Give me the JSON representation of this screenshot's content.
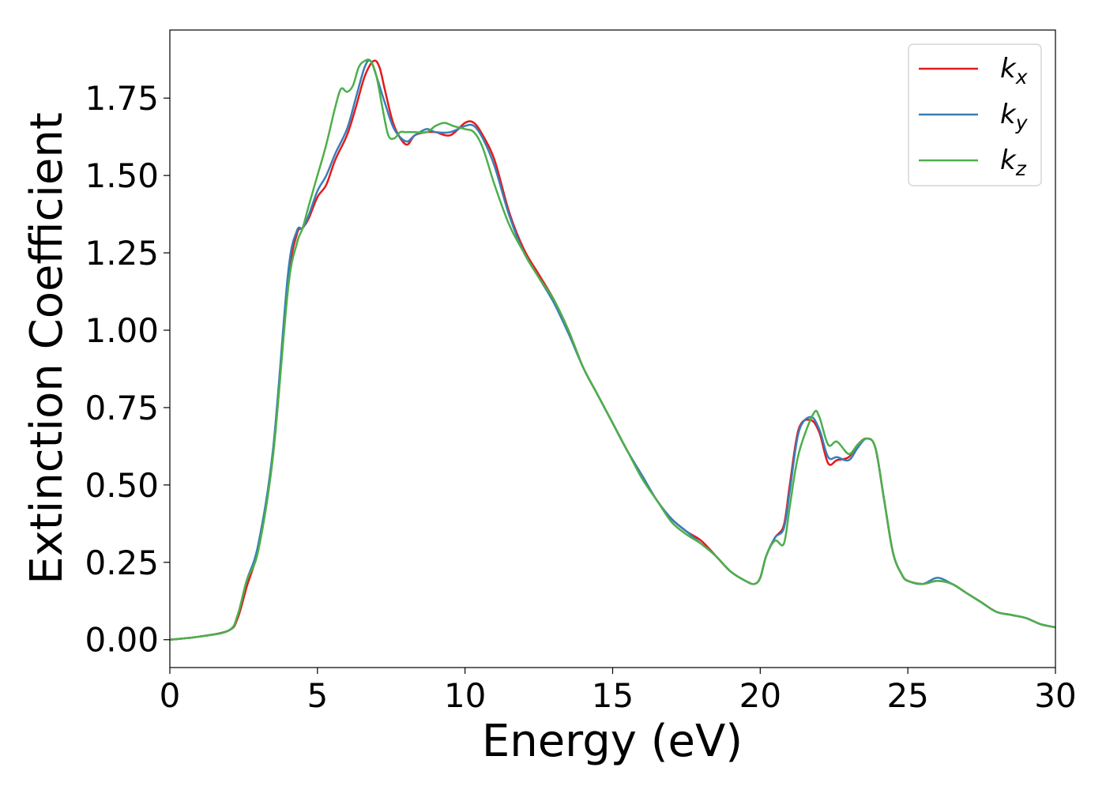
{
  "chart_data": {
    "type": "line",
    "xlabel": "Energy (eV)",
    "ylabel": "Extinction Coefficient",
    "xlim": [
      0,
      30
    ],
    "ylim": [
      -0.09,
      1.97
    ],
    "xticks": [
      0,
      5,
      10,
      15,
      20,
      25,
      30
    ],
    "xtick_labels": [
      "0",
      "5",
      "10",
      "15",
      "20",
      "25",
      "30"
    ],
    "yticks": [
      0.0,
      0.25,
      0.5,
      0.75,
      1.0,
      1.25,
      1.5,
      1.75
    ],
    "ytick_labels": [
      "0.00",
      "0.25",
      "0.50",
      "0.75",
      "1.00",
      "1.25",
      "1.50",
      "1.75"
    ],
    "grid": false,
    "legend_position": "top-right",
    "series": [
      {
        "name": "k_x",
        "label_base": "k",
        "label_sub": "x",
        "color": "#e41a1c",
        "x": [
          0,
          1,
          2,
          2.3,
          2.6,
          3,
          3.5,
          4,
          4.3,
          4.5,
          4.7,
          5,
          5.3,
          5.6,
          6,
          6.3,
          6.6,
          6.9,
          7.1,
          7.3,
          7.6,
          8,
          8.3,
          8.7,
          9,
          9.5,
          10,
          10.3,
          10.6,
          11,
          11.5,
          12,
          12.5,
          13,
          13.5,
          14,
          14.5,
          15,
          15.5,
          16,
          16.5,
          17,
          17.5,
          18,
          18.5,
          19,
          19.5,
          19.8,
          20,
          20.2,
          20.5,
          20.8,
          21,
          21.3,
          21.7,
          22,
          22.3,
          22.6,
          23,
          23.3,
          23.6,
          23.9,
          24.2,
          24.5,
          24.8,
          25,
          25.5,
          26,
          26.5,
          27,
          27.5,
          28,
          28.5,
          29,
          29.5,
          30
        ],
        "y": [
          0.0,
          0.01,
          0.03,
          0.07,
          0.17,
          0.3,
          0.6,
          1.15,
          1.31,
          1.33,
          1.36,
          1.43,
          1.47,
          1.55,
          1.63,
          1.72,
          1.82,
          1.87,
          1.85,
          1.77,
          1.66,
          1.6,
          1.63,
          1.64,
          1.64,
          1.63,
          1.67,
          1.67,
          1.63,
          1.55,
          1.38,
          1.26,
          1.18,
          1.1,
          1.0,
          0.88,
          0.79,
          0.7,
          0.61,
          0.53,
          0.45,
          0.39,
          0.35,
          0.32,
          0.27,
          0.22,
          0.19,
          0.18,
          0.2,
          0.27,
          0.33,
          0.37,
          0.5,
          0.68,
          0.71,
          0.67,
          0.57,
          0.58,
          0.59,
          0.63,
          0.65,
          0.62,
          0.45,
          0.28,
          0.21,
          0.19,
          0.18,
          0.19,
          0.18,
          0.15,
          0.12,
          0.09,
          0.08,
          0.07,
          0.05,
          0.04
        ]
      },
      {
        "name": "k_y",
        "label_base": "k",
        "label_sub": "y",
        "color": "#377eb8",
        "x": [
          0,
          1,
          2,
          2.3,
          2.6,
          3,
          3.5,
          4,
          4.3,
          4.5,
          4.7,
          5,
          5.3,
          5.6,
          6,
          6.3,
          6.6,
          6.8,
          7,
          7.3,
          7.6,
          8,
          8.3,
          8.7,
          9,
          9.5,
          10,
          10.3,
          10.6,
          11,
          11.5,
          12,
          12.5,
          13,
          13.5,
          14,
          14.5,
          15,
          15.5,
          16,
          16.5,
          17,
          17.5,
          18,
          18.5,
          19,
          19.5,
          19.8,
          20,
          20.2,
          20.5,
          20.8,
          21,
          21.3,
          21.7,
          22,
          22.3,
          22.6,
          23,
          23.3,
          23.6,
          23.9,
          24.2,
          24.5,
          24.8,
          25,
          25.5,
          26,
          26.5,
          27,
          27.5,
          28,
          28.5,
          29,
          29.5,
          30
        ],
        "y": [
          0.0,
          0.01,
          0.03,
          0.08,
          0.19,
          0.31,
          0.62,
          1.18,
          1.32,
          1.33,
          1.37,
          1.45,
          1.5,
          1.57,
          1.65,
          1.75,
          1.85,
          1.87,
          1.82,
          1.73,
          1.65,
          1.61,
          1.63,
          1.65,
          1.64,
          1.64,
          1.66,
          1.66,
          1.62,
          1.53,
          1.37,
          1.25,
          1.17,
          1.09,
          0.99,
          0.88,
          0.79,
          0.7,
          0.61,
          0.53,
          0.45,
          0.39,
          0.35,
          0.31,
          0.27,
          0.22,
          0.19,
          0.18,
          0.2,
          0.27,
          0.33,
          0.36,
          0.48,
          0.67,
          0.72,
          0.68,
          0.59,
          0.59,
          0.58,
          0.62,
          0.65,
          0.62,
          0.45,
          0.28,
          0.21,
          0.19,
          0.18,
          0.2,
          0.18,
          0.15,
          0.12,
          0.09,
          0.08,
          0.07,
          0.05,
          0.04
        ]
      },
      {
        "name": "k_z",
        "label_base": "k",
        "label_sub": "z",
        "color": "#4daf4a",
        "x": [
          0,
          1,
          2,
          2.3,
          2.6,
          3,
          3.5,
          4,
          4.3,
          4.5,
          4.7,
          5,
          5.3,
          5.6,
          5.8,
          6,
          6.2,
          6.4,
          6.6,
          6.8,
          7,
          7.2,
          7.4,
          7.6,
          7.8,
          8,
          8.3,
          8.7,
          9,
          9.3,
          9.6,
          10,
          10.3,
          10.6,
          11,
          11.5,
          12,
          12.5,
          13,
          13.5,
          14,
          14.5,
          15,
          15.5,
          16,
          16.5,
          17,
          17.5,
          18,
          18.5,
          19,
          19.5,
          19.8,
          20,
          20.2,
          20.5,
          20.8,
          21,
          21.3,
          21.8,
          22,
          22.3,
          22.6,
          23,
          23.3,
          23.6,
          23.9,
          24.2,
          24.5,
          24.8,
          25,
          25.5,
          26,
          26.5,
          27,
          27.5,
          28,
          28.5,
          29,
          29.5,
          30
        ],
        "y": [
          0.0,
          0.01,
          0.03,
          0.08,
          0.19,
          0.29,
          0.6,
          1.13,
          1.28,
          1.33,
          1.4,
          1.5,
          1.6,
          1.72,
          1.78,
          1.77,
          1.79,
          1.85,
          1.87,
          1.87,
          1.82,
          1.72,
          1.63,
          1.62,
          1.64,
          1.64,
          1.64,
          1.64,
          1.66,
          1.67,
          1.66,
          1.65,
          1.64,
          1.59,
          1.47,
          1.34,
          1.25,
          1.17,
          1.1,
          1.0,
          0.88,
          0.79,
          0.7,
          0.61,
          0.52,
          0.45,
          0.38,
          0.34,
          0.31,
          0.27,
          0.22,
          0.19,
          0.18,
          0.2,
          0.27,
          0.32,
          0.31,
          0.43,
          0.6,
          0.73,
          0.72,
          0.63,
          0.64,
          0.6,
          0.63,
          0.65,
          0.62,
          0.45,
          0.28,
          0.21,
          0.19,
          0.18,
          0.19,
          0.18,
          0.15,
          0.12,
          0.09,
          0.08,
          0.07,
          0.05,
          0.04
        ]
      }
    ]
  }
}
